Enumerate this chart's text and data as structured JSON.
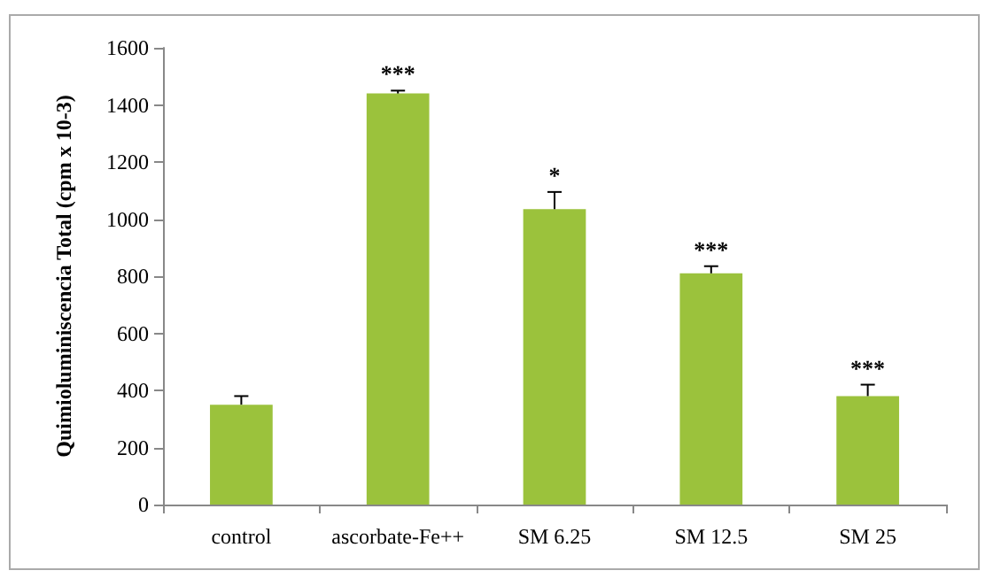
{
  "chart_data": {
    "type": "bar",
    "ylabel": "Quimioluminiscencia Total (cpm x 10-3)",
    "categories": [
      "control",
      "ascorbate-Fe++",
      "SM 6.25",
      "SM 12.5",
      "SM 25"
    ],
    "values": [
      350,
      1440,
      1035,
      810,
      380
    ],
    "errors": [
      [
        350,
        380
      ],
      [
        1440,
        1450
      ],
      [
        1035,
        1095
      ],
      [
        810,
        835
      ],
      [
        380,
        420
      ]
    ],
    "color": "#9bc23c",
    "ylim": [
      0,
      1600
    ],
    "yticks": [
      0,
      200,
      400,
      600,
      800,
      1000,
      1200,
      1400,
      1600
    ],
    "grid": false,
    "annotations": [
      {
        "text": "***",
        "x": "ascorbate-Fe++",
        "y": 1450
      },
      {
        "text": "*",
        "x": "SM 6.25",
        "y": 1095
      },
      {
        "text": "***",
        "x": "SM 12.5",
        "y": 835
      },
      {
        "text": "***",
        "x": "SM 25",
        "y": 420
      }
    ]
  }
}
